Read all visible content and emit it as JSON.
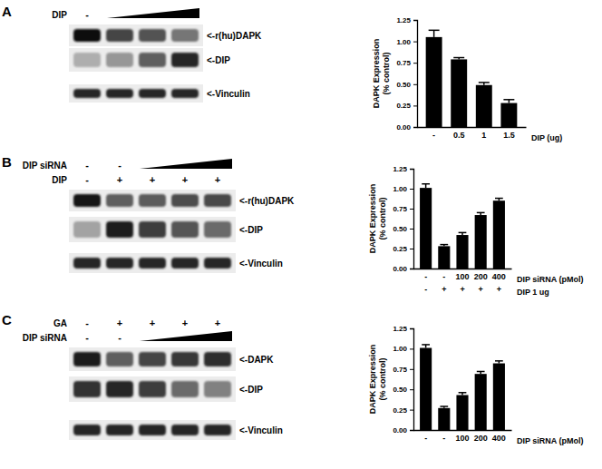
{
  "chart_data": [
    {
      "type": "bar",
      "color": "#000000",
      "categories": [
        "-",
        "0.5",
        "1",
        "1.5"
      ],
      "xlabel": "DIP (ug)",
      "ylabel": [
        "DAPK Expression",
        "(% control)"
      ],
      "values": [
        1.05,
        0.79,
        0.49,
        0.28
      ],
      "errors": [
        0.08,
        0.02,
        0.03,
        0.04
      ],
      "ylim": [
        0,
        1.25
      ],
      "yticks": [
        {
          "value": 0,
          "label": "0.00"
        },
        {
          "value": 0.25,
          "label": "0.25"
        },
        {
          "value": 0.5,
          "label": "0.50"
        },
        {
          "value": 0.75,
          "label": "0.75"
        },
        {
          "value": 1,
          "label": "1.00"
        },
        {
          "value": 1.25,
          "label": "1.25"
        }
      ]
    },
    {
      "type": "bar",
      "color": "#000000",
      "categories": [
        "-",
        "-",
        "100",
        "200",
        "400"
      ],
      "xlabel": "DIP siRNA (pMol)",
      "categories2": [
        "-",
        "+",
        "+",
        "+",
        "+"
      ],
      "xlabel2": "DIP 1 ug",
      "ylabel": [
        "DAPK Expression",
        "(% control)"
      ],
      "values": [
        1.01,
        0.28,
        0.42,
        0.67,
        0.85
      ],
      "errors": [
        0.05,
        0.02,
        0.03,
        0.03,
        0.03
      ],
      "ylim": [
        0,
        1.25
      ],
      "yticks": [
        {
          "value": 0,
          "label": "0.00"
        },
        {
          "value": 0.25,
          "label": "0.25"
        },
        {
          "value": 0.5,
          "label": "0.50"
        },
        {
          "value": 0.75,
          "label": "0.75"
        },
        {
          "value": 1,
          "label": "1.00"
        },
        {
          "value": 1.25,
          "label": "1.25"
        }
      ]
    },
    {
      "type": "bar",
      "color": "#000000",
      "categories": [
        "-",
        "-",
        "100",
        "200",
        "400"
      ],
      "xlabel": "DIP siRNA (pMol)",
      "ylabel": [
        "DAPK Expression",
        "(% control)"
      ],
      "values": [
        1.01,
        0.27,
        0.43,
        0.69,
        0.82
      ],
      "errors": [
        0.04,
        0.02,
        0.03,
        0.03,
        0.03
      ],
      "ylim": [
        0,
        1.25
      ],
      "yticks": [
        {
          "value": 0,
          "label": "0.00"
        },
        {
          "value": 0.25,
          "label": "0.25"
        },
        {
          "value": 0.5,
          "label": "0.50"
        },
        {
          "value": 0.75,
          "label": "0.75"
        },
        {
          "value": 1,
          "label": "1.00"
        },
        {
          "value": 1.25,
          "label": "1.25"
        }
      ]
    }
  ],
  "blots": [
    {
      "panel": "A",
      "header": [
        {
          "label": "DIP",
          "marks": [
            "-",
            null,
            null,
            null
          ]
        }
      ],
      "rows": [
        {
          "label": "<-r(hu)DAPK",
          "intensities": [
            0.95,
            0.72,
            0.66,
            0.5
          ]
        },
        {
          "label": "<-DIP",
          "intensities": [
            0.25,
            0.35,
            0.6,
            0.85
          ]
        },
        {
          "label": "<-Vinculin",
          "intensities": [
            0.85,
            0.85,
            0.85,
            0.85
          ]
        }
      ]
    },
    {
      "panel": "B",
      "header": [
        {
          "label": "DIP siRNA",
          "marks": [
            "-",
            "-",
            null,
            null,
            null
          ]
        },
        {
          "label": "DIP",
          "marks": [
            "-",
            "+",
            "+",
            "+",
            "+"
          ]
        }
      ],
      "rows": [
        {
          "label": "<-r(hu)DAPK",
          "intensities": [
            0.92,
            0.6,
            0.62,
            0.68,
            0.7
          ]
        },
        {
          "label": "<-DIP",
          "intensities": [
            0.3,
            0.9,
            0.75,
            0.65,
            0.55
          ]
        },
        {
          "label": "<-Vinculin",
          "intensities": [
            0.85,
            0.85,
            0.85,
            0.85,
            0.85
          ]
        }
      ]
    },
    {
      "panel": "C",
      "header": [
        {
          "label": "GA",
          "marks": [
            "-",
            "+",
            "+",
            "+",
            "+"
          ]
        },
        {
          "label": "DIP siRNA",
          "marks": [
            "-",
            "-",
            null,
            null,
            null
          ]
        }
      ],
      "rows": [
        {
          "label": "<-DAPK",
          "intensities": [
            0.9,
            0.6,
            0.72,
            0.78,
            0.82
          ]
        },
        {
          "label": "<-DIP",
          "intensities": [
            0.8,
            0.85,
            0.75,
            0.55,
            0.45
          ]
        },
        {
          "label": "<-Vinculin",
          "intensities": [
            0.85,
            0.85,
            0.85,
            0.85,
            0.85
          ]
        }
      ]
    }
  ]
}
